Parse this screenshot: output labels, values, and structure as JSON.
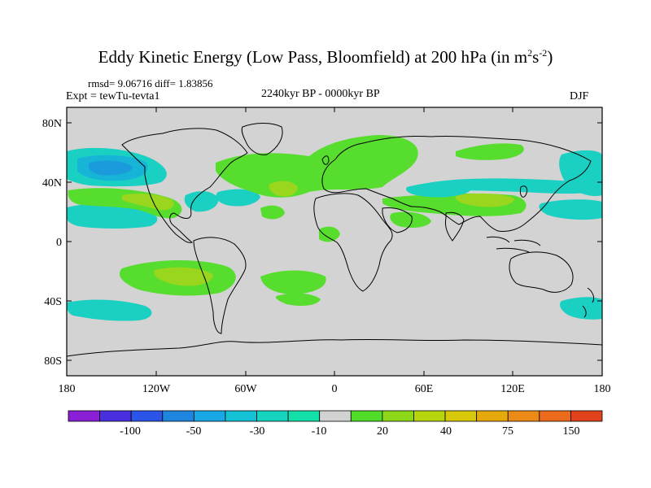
{
  "title_main": "Eddy Kinetic Energy (Low Pass, Bloomfield) at 200 hPa (in m",
  "title_sup1": "2",
  "title_mid": "s",
  "title_sup2": "-2",
  "title_end": ")",
  "rmsd_line": "rmsd= 9.06716 diff= 1.83856",
  "expt_line": "Expt = tewTu-tevta1",
  "period": "2240kyr BP - 0000kyr BP",
  "season": "DJF",
  "lat_labels": [
    "80N",
    "40N",
    "0",
    "40S",
    "80S"
  ],
  "lon_labels": [
    "180",
    "120W",
    "60W",
    "0",
    "60E",
    "120E",
    "180"
  ],
  "colorbar": {
    "colors": [
      "#8a1fd6",
      "#4a2fe0",
      "#2a55e8",
      "#1f86e0",
      "#1aa7e6",
      "#13c2d4",
      "#14d4c0",
      "#13e0a8",
      "#d2d2d2",
      "#52dc2a",
      "#8cd818",
      "#b8d40c",
      "#d8c80a",
      "#e6a90c",
      "#ec8a18",
      "#ec6a1c",
      "#e0421c"
    ],
    "labels": [
      "-100",
      "-50",
      "-30",
      "-10",
      "20",
      "40",
      "75",
      "150"
    ]
  },
  "colors": {
    "land_background": "#d3d3d3",
    "coast": "#000000",
    "green_light": "#57dd2e",
    "green_yellow": "#9ad61e",
    "cyan": "#19d0c2",
    "cyan_blue": "#16b4d6",
    "blue_core": "#1c9bdc"
  }
}
